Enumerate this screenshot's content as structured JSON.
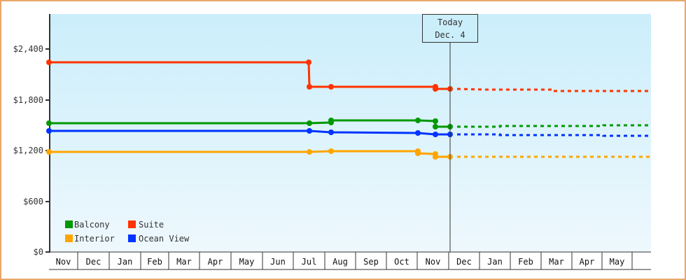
{
  "chart_data": {
    "type": "line",
    "title": "",
    "xlabel": "",
    "ylabel": "",
    "ylim": [
      0,
      2800
    ],
    "y_ticks": [
      "$0",
      "$600",
      "$1,200",
      "$1,800",
      "$2,400"
    ],
    "y_tick_values": [
      0,
      600,
      1200,
      1800,
      2400
    ],
    "x_ticks": [
      "Nov",
      "Dec",
      "Jan",
      "Feb",
      "Mar",
      "Apr",
      "May",
      "Jun",
      "Jul",
      "Aug",
      "Sep",
      "Oct",
      "Nov",
      "Dec",
      "Jan",
      "Feb",
      "Mar",
      "Apr",
      "May"
    ],
    "grid": false,
    "legend_position": "lower-left inside",
    "annotation": {
      "line1": "Today",
      "line2": "Dec. 4"
    },
    "series": [
      {
        "name": "Balcony",
        "color": "#009900",
        "history": [
          {
            "x": "Nov",
            "value": 1520
          },
          {
            "x": "Jul",
            "value": 1520
          },
          {
            "x": "Jul",
            "value": 1530
          },
          {
            "x": "Aug",
            "value": 1530
          },
          {
            "x": "Aug",
            "value": 1560
          },
          {
            "x": "Oct",
            "value": 1560
          },
          {
            "x": "Nov",
            "value": 1550
          },
          {
            "x": "Nov",
            "value": 1480
          },
          {
            "x": "Dec 4",
            "value": 1480
          }
        ],
        "forecast": [
          {
            "x": "Dec 4",
            "value": 1480
          },
          {
            "x": "Jan",
            "value": 1495
          },
          {
            "x": "May",
            "value": 1500
          }
        ]
      },
      {
        "name": "Suite",
        "color": "#ff3300",
        "history": [
          {
            "x": "Nov",
            "value": 2240
          },
          {
            "x": "Jul",
            "value": 2240
          },
          {
            "x": "Jul",
            "value": 1950
          },
          {
            "x": "Aug",
            "value": 1950
          },
          {
            "x": "Nov",
            "value": 1950
          },
          {
            "x": "Nov",
            "value": 1930
          },
          {
            "x": "Dec 4",
            "value": 1930
          }
        ],
        "forecast": [
          {
            "x": "Dec 4",
            "value": 1930
          },
          {
            "x": "Jan",
            "value": 1920
          },
          {
            "x": "Mar",
            "value": 1910
          },
          {
            "x": "May",
            "value": 1905
          }
        ]
      },
      {
        "name": "Interior",
        "color": "#ffa500",
        "history": [
          {
            "x": "Nov",
            "value": 1180
          },
          {
            "x": "Jul",
            "value": 1180
          },
          {
            "x": "Aug",
            "value": 1185
          },
          {
            "x": "Oct",
            "value": 1180
          },
          {
            "x": "Oct",
            "value": 1160
          },
          {
            "x": "Nov",
            "value": 1160
          },
          {
            "x": "Nov",
            "value": 1125
          },
          {
            "x": "Dec 4",
            "value": 1125
          }
        ],
        "forecast": [
          {
            "x": "Dec 4",
            "value": 1125
          },
          {
            "x": "May",
            "value": 1125
          }
        ]
      },
      {
        "name": "Ocean View",
        "color": "#0033ff",
        "history": [
          {
            "x": "Nov",
            "value": 1430
          },
          {
            "x": "Jul",
            "value": 1430
          },
          {
            "x": "Aug",
            "value": 1420
          },
          {
            "x": "Oct",
            "value": 1415
          },
          {
            "x": "Nov",
            "value": 1395
          },
          {
            "x": "Dec 4",
            "value": 1390
          }
        ],
        "forecast": [
          {
            "x": "Dec 4",
            "value": 1390
          },
          {
            "x": "Jan",
            "value": 1385
          },
          {
            "x": "Apr",
            "value": 1375
          },
          {
            "x": "May",
            "value": 1375
          }
        ]
      }
    ]
  },
  "legend": [
    {
      "label": "Balcony",
      "color": "#009900"
    },
    {
      "label": "Suite",
      "color": "#ff3300"
    },
    {
      "label": "Interior",
      "color": "#ffa500"
    },
    {
      "label": "Ocean View",
      "color": "#0033ff"
    }
  ],
  "axis": {
    "y_labels": [
      "$2,400",
      "$1,800",
      "$1,200",
      "$600",
      "$0"
    ],
    "x_labels": [
      "Nov",
      "Dec",
      "Jan",
      "Feb",
      "Mar",
      "Apr",
      "May",
      "Jun",
      "Jul",
      "Aug",
      "Sep",
      "Oct",
      "Nov",
      "Dec",
      "Jan",
      "Feb",
      "Mar",
      "Apr",
      "May"
    ]
  },
  "today": {
    "line1": "Today",
    "line2": "Dec. 4"
  }
}
